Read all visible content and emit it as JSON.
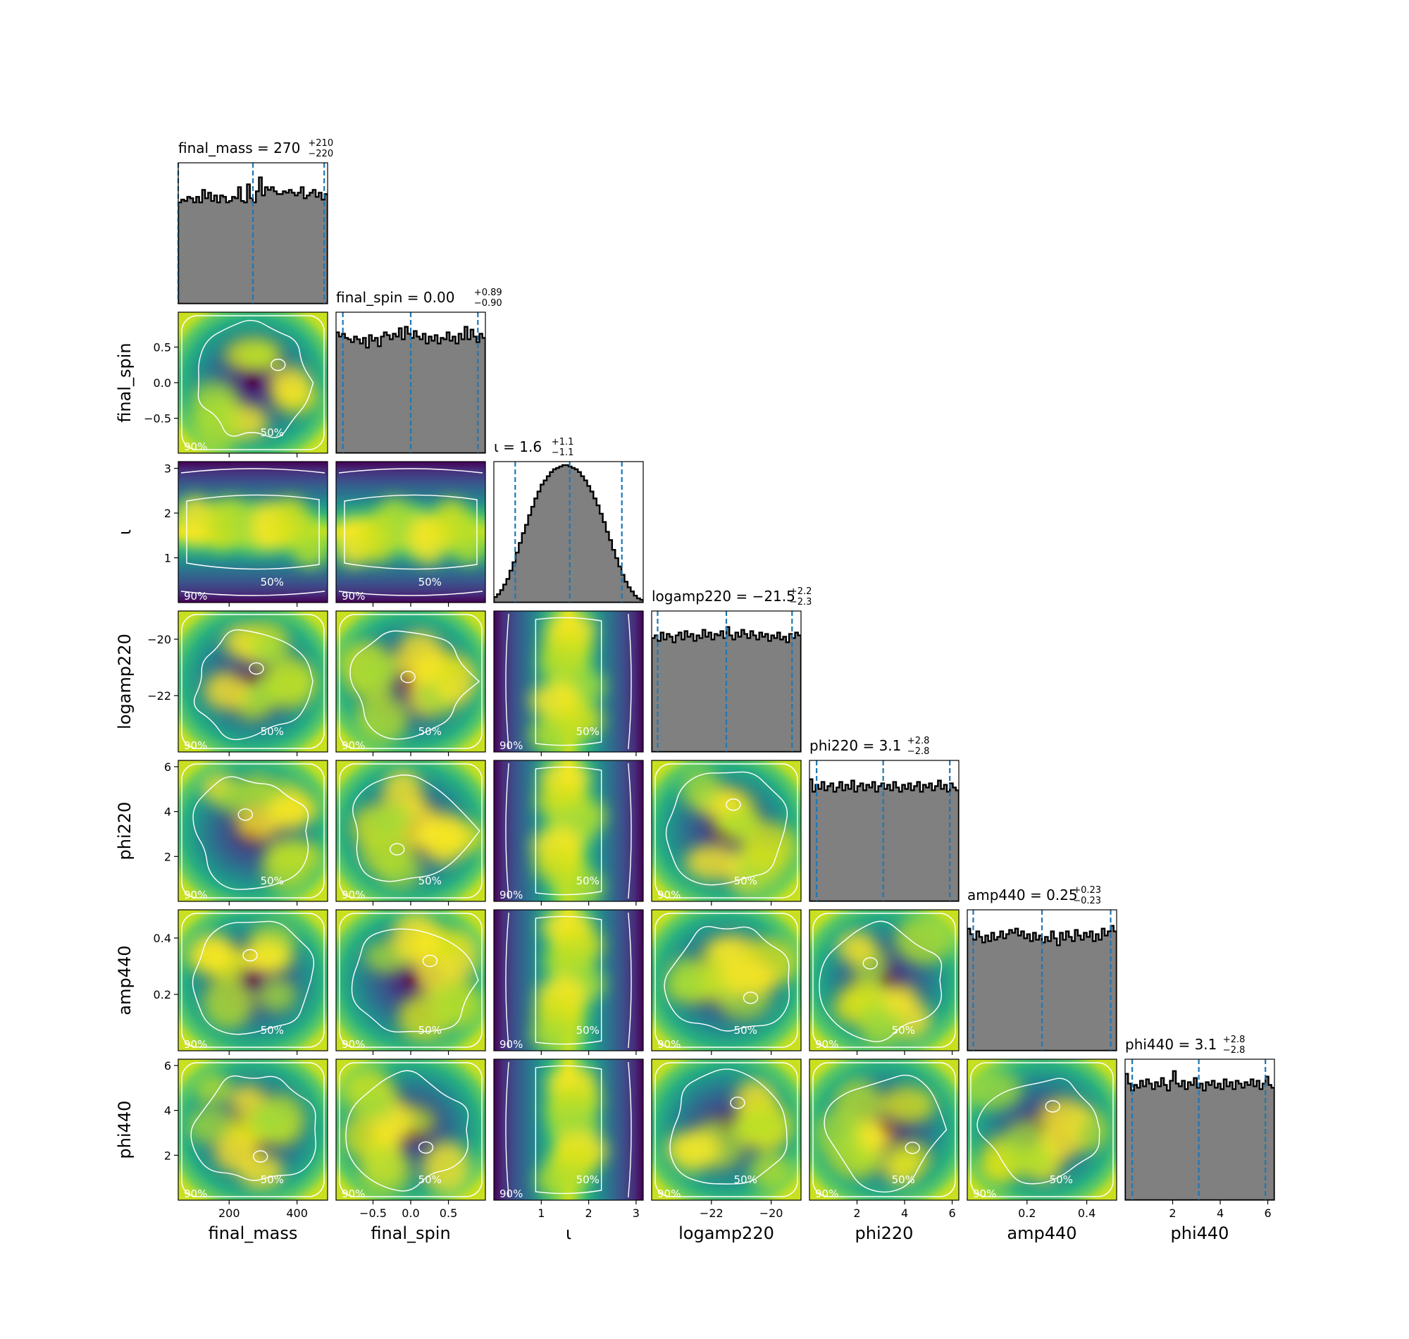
{
  "chart_data": {
    "type": "corner",
    "colors": {
      "hist_fill": "#808080",
      "hist_edge": "#000000",
      "quantile_line": "#1f77b4",
      "contour": "#ffffff",
      "density_low": "#440154",
      "density_high": "#fde725"
    },
    "contour_levels": [
      "50%",
      "90%"
    ],
    "parameters": [
      {
        "name": "final_mass",
        "label": "final_mass",
        "title_main": "final_mass = 270",
        "title_sup": "+210",
        "title_sub": "−220",
        "range": [
          50,
          490
        ],
        "median": 270,
        "upper": 480,
        "lower": 50,
        "ticks": [
          200,
          400
        ],
        "tick_labels": [
          "200",
          "400"
        ],
        "hist_levels": [
          0.73,
          0.75,
          0.74,
          0.77,
          0.76,
          0.73,
          0.77,
          0.73,
          0.82,
          0.76,
          0.8,
          0.74,
          0.78,
          0.73,
          0.78,
          0.77,
          0.73,
          0.74,
          0.77,
          0.76,
          0.84,
          0.74,
          0.73,
          0.86,
          0.76,
          0.73,
          0.81,
          0.91,
          0.78,
          0.84,
          0.82,
          0.84,
          0.81,
          0.79,
          0.79,
          0.81,
          0.8,
          0.82,
          0.8,
          0.78,
          0.8,
          0.84,
          0.76,
          0.78,
          0.8,
          0.82,
          0.77,
          0.8,
          0.75,
          0.79
        ]
      },
      {
        "name": "final_spin",
        "label": "final_spin",
        "title_main": "final_spin = 0.00",
        "title_sup": "+0.89",
        "title_sub": "−0.90",
        "range": [
          -0.99,
          0.99
        ],
        "median": 0.0,
        "upper": 0.89,
        "lower": -0.9,
        "ticks": [
          -0.5,
          0.0,
          0.5
        ],
        "tick_labels": [
          "−0.5",
          "0.0",
          "0.5"
        ],
        "hist_levels": [
          0.87,
          0.84,
          0.86,
          0.83,
          0.82,
          0.8,
          0.84,
          0.82,
          0.79,
          0.83,
          0.76,
          0.85,
          0.81,
          0.83,
          0.77,
          0.84,
          0.87,
          0.85,
          0.82,
          0.86,
          0.84,
          0.9,
          0.82,
          0.91,
          0.86,
          0.83,
          0.88,
          0.84,
          0.82,
          0.86,
          0.79,
          0.84,
          0.81,
          0.85,
          0.79,
          0.83,
          0.82,
          0.87,
          0.81,
          0.84,
          0.79,
          0.86,
          0.82,
          0.91,
          0.82,
          0.89,
          0.84,
          0.8,
          0.86,
          0.83
        ]
      },
      {
        "name": "iota",
        "label": "ι",
        "title_main": "ι = 1.6",
        "title_sup": "+1.1",
        "title_sub": "−1.1",
        "range": [
          0.0,
          3.15
        ],
        "median": 1.6,
        "upper": 2.7,
        "lower": 0.45,
        "ticks": [
          1,
          2,
          3
        ],
        "tick_labels": [
          "1",
          "2",
          "3"
        ],
        "hist_levels": [
          0.04,
          0.06,
          0.09,
          0.13,
          0.17,
          0.23,
          0.29,
          0.36,
          0.43,
          0.5,
          0.56,
          0.63,
          0.69,
          0.75,
          0.8,
          0.85,
          0.88,
          0.91,
          0.94,
          0.96,
          0.97,
          0.98,
          0.99,
          0.99,
          0.98,
          0.97,
          0.96,
          0.94,
          0.91,
          0.88,
          0.84,
          0.8,
          0.75,
          0.7,
          0.64,
          0.58,
          0.51,
          0.45,
          0.38,
          0.32,
          0.26,
          0.2,
          0.15,
          0.11,
          0.08,
          0.05,
          0.03,
          0.02
        ]
      },
      {
        "name": "logamp220",
        "label": "logamp220",
        "title_main": "logamp220 = −21.5",
        "title_sup": "+2.2",
        "title_sub": "−2.3",
        "range": [
          -24.0,
          -19.0
        ],
        "median": -21.5,
        "upper": -19.3,
        "lower": -23.8,
        "ticks": [
          -22,
          -20
        ],
        "tick_labels": [
          "−22",
          "−20"
        ],
        "hist_levels": [
          0.82,
          0.84,
          0.8,
          0.86,
          0.81,
          0.85,
          0.83,
          0.79,
          0.84,
          0.86,
          0.81,
          0.87,
          0.83,
          0.85,
          0.8,
          0.84,
          0.82,
          0.88,
          0.83,
          0.86,
          0.81,
          0.85,
          0.84,
          0.87,
          0.82,
          0.9,
          0.84,
          0.81,
          0.86,
          0.83,
          0.88,
          0.85,
          0.82,
          0.87,
          0.84,
          0.81,
          0.86,
          0.83,
          0.85,
          0.8,
          0.84,
          0.82,
          0.86,
          0.81,
          0.83,
          0.79,
          0.85,
          0.82,
          0.86,
          0.84
        ]
      },
      {
        "name": "phi220",
        "label": "phi220",
        "title_main": "phi220 = 3.1",
        "title_sup": "+2.8",
        "title_sub": "−2.8",
        "range": [
          0.0,
          6.28
        ],
        "median": 3.1,
        "upper": 5.9,
        "lower": 0.3,
        "ticks": [
          2,
          4,
          6
        ],
        "tick_labels": [
          "2",
          "4",
          "6"
        ],
        "hist_levels": [
          0.88,
          0.79,
          0.84,
          0.81,
          0.86,
          0.8,
          0.83,
          0.85,
          0.79,
          0.82,
          0.86,
          0.8,
          0.84,
          0.81,
          0.87,
          0.79,
          0.83,
          0.85,
          0.8,
          0.84,
          0.82,
          0.86,
          0.79,
          0.83,
          0.85,
          0.81,
          0.84,
          0.8,
          0.86,
          0.82,
          0.79,
          0.84,
          0.81,
          0.85,
          0.8,
          0.83,
          0.86,
          0.79,
          0.84,
          0.82,
          0.85,
          0.8,
          0.83,
          0.87,
          0.81,
          0.84,
          0.79,
          0.85,
          0.82,
          0.8
        ]
      },
      {
        "name": "amp440",
        "label": "amp440",
        "title_main": "amp440 = 0.25",
        "title_sup": "+0.23",
        "title_sub": "−0.23",
        "range": [
          0.0,
          0.5
        ],
        "median": 0.25,
        "upper": 0.48,
        "lower": 0.02,
        "ticks": [
          0.2,
          0.4
        ],
        "tick_labels": [
          "0.2",
          "0.4"
        ],
        "hist_levels": [
          0.88,
          0.84,
          0.8,
          0.86,
          0.82,
          0.78,
          0.83,
          0.79,
          0.85,
          0.8,
          0.82,
          0.86,
          0.81,
          0.84,
          0.87,
          0.85,
          0.88,
          0.83,
          0.86,
          0.81,
          0.84,
          0.79,
          0.85,
          0.8,
          0.83,
          0.78,
          0.82,
          0.79,
          0.86,
          0.81,
          0.76,
          0.85,
          0.8,
          0.86,
          0.82,
          0.79,
          0.87,
          0.83,
          0.8,
          0.85,
          0.82,
          0.86,
          0.79,
          0.84,
          0.8,
          0.88,
          0.83,
          0.86,
          0.9,
          0.86
        ]
      },
      {
        "name": "phi440",
        "label": "phi440",
        "title_main": "phi440 = 3.1",
        "title_sup": "+2.8",
        "title_sub": "−2.8",
        "range": [
          0.0,
          6.28
        ],
        "median": 3.1,
        "upper": 5.9,
        "lower": 0.3,
        "ticks": [
          2,
          4,
          6
        ],
        "tick_labels": [
          "2",
          "4",
          "6"
        ],
        "hist_levels": [
          0.91,
          0.84,
          0.79,
          0.83,
          0.81,
          0.86,
          0.82,
          0.87,
          0.84,
          0.8,
          0.85,
          0.82,
          0.88,
          0.83,
          0.79,
          0.86,
          0.93,
          0.84,
          0.82,
          0.86,
          0.8,
          0.85,
          0.83,
          0.88,
          0.81,
          0.84,
          0.79,
          0.85,
          0.83,
          0.86,
          0.81,
          0.84,
          0.8,
          0.87,
          0.82,
          0.85,
          0.8,
          0.86,
          0.84,
          0.81,
          0.85,
          0.83,
          0.87,
          0.82,
          0.86,
          0.8,
          0.84,
          0.89,
          0.83,
          0.81
        ]
      }
    ]
  }
}
